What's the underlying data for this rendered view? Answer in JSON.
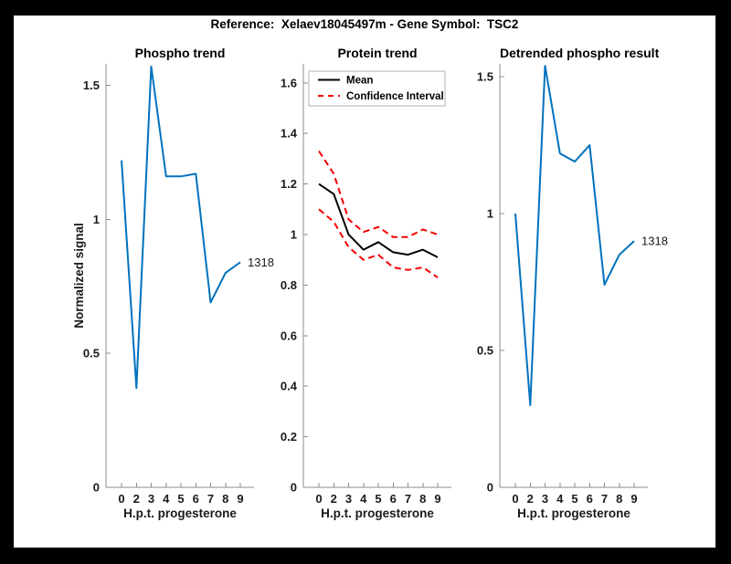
{
  "figure_title": "Reference:  Xelaev18045497m - Gene Symbol:  TSC2",
  "colors": {
    "blue": "#0072bd",
    "red": "#f20000",
    "black": "#000000",
    "axis": "#8c8c8c",
    "text": "#1a1a1a",
    "legend_border": "#b0b0b0",
    "figure_background": "#ffffff",
    "window_background": "#000000"
  },
  "chart_data": [
    {
      "type": "line",
      "title": "Phospho trend",
      "xlabel": "H.p.t. progesterone",
      "ylabel": "Normalized signal",
      "x_tick_labels": [
        "0",
        "2",
        "3",
        "4",
        "5",
        "6",
        "7",
        "8",
        "9"
      ],
      "y_ticks": [
        {
          "v": 0,
          "label": "0"
        },
        {
          "v": 0.5,
          "label": "0.5"
        },
        {
          "v": 1,
          "label": "1"
        },
        {
          "v": 1.5,
          "label": "1.5"
        }
      ],
      "ylim": [
        0,
        1.58
      ],
      "grid": false,
      "legend": null,
      "series": [
        {
          "name": "Phospho signal",
          "color": "blue",
          "dash": false,
          "values": [
            1.22,
            0.37,
            1.57,
            1.16,
            1.16,
            1.17,
            0.69,
            0.8,
            0.84
          ]
        }
      ],
      "annotation": {
        "text": "1318",
        "at_index": 8,
        "value": 0.84
      }
    },
    {
      "type": "line",
      "title": "Protein trend",
      "xlabel": "H.p.t. progesterone",
      "ylabel": "",
      "x_tick_labels": [
        "0",
        "2",
        "3",
        "4",
        "5",
        "6",
        "7",
        "8",
        "9"
      ],
      "y_ticks": [
        {
          "v": 0,
          "label": "0"
        },
        {
          "v": 0.2,
          "label": "0.2"
        },
        {
          "v": 0.4,
          "label": "0.4"
        },
        {
          "v": 0.6,
          "label": "0.6"
        },
        {
          "v": 0.8,
          "label": "0.8"
        },
        {
          "v": 1,
          "label": "1"
        },
        {
          "v": 1.2,
          "label": "1.2"
        },
        {
          "v": 1.4,
          "label": "1.4"
        },
        {
          "v": 1.6,
          "label": "1.6"
        }
      ],
      "ylim": [
        0,
        1.675
      ],
      "grid": false,
      "legend": {
        "position": "top-left",
        "entries": [
          {
            "label": "Mean",
            "color": "black",
            "dash": false
          },
          {
            "label": "Confidence Interval",
            "color": "red",
            "dash": true
          }
        ]
      },
      "series": [
        {
          "name": "Mean",
          "color": "black",
          "dash": false,
          "values": [
            1.2,
            1.16,
            1.0,
            0.94,
            0.97,
            0.93,
            0.92,
            0.94,
            0.91
          ]
        },
        {
          "name": "Confidence Interval upper",
          "color": "red",
          "dash": true,
          "values": [
            1.33,
            1.24,
            1.06,
            1.01,
            1.03,
            0.99,
            0.99,
            1.02,
            1.0
          ]
        },
        {
          "name": "Confidence Interval lower",
          "color": "red",
          "dash": true,
          "values": [
            1.1,
            1.05,
            0.95,
            0.9,
            0.92,
            0.87,
            0.86,
            0.87,
            0.83
          ]
        }
      ],
      "annotation": null
    },
    {
      "type": "line",
      "title": "Detrended phospho result",
      "xlabel": "H.p.t. progesterone",
      "ylabel": "",
      "x_tick_labels": [
        "0",
        "2",
        "3",
        "4",
        "5",
        "6",
        "7",
        "8",
        "9"
      ],
      "y_ticks": [
        {
          "v": 0,
          "label": "0"
        },
        {
          "v": 0.5,
          "label": "0.5"
        },
        {
          "v": 1,
          "label": "1"
        },
        {
          "v": 1.5,
          "label": "1.5"
        }
      ],
      "ylim": [
        0,
        1.547
      ],
      "grid": false,
      "legend": null,
      "series": [
        {
          "name": "Detrended phospho signal",
          "color": "blue",
          "dash": false,
          "values": [
            1.0,
            0.3,
            1.54,
            1.22,
            1.19,
            1.25,
            0.74,
            0.85,
            0.9
          ]
        }
      ],
      "annotation": {
        "text": "1318",
        "at_index": 8,
        "value": 0.9
      }
    }
  ]
}
